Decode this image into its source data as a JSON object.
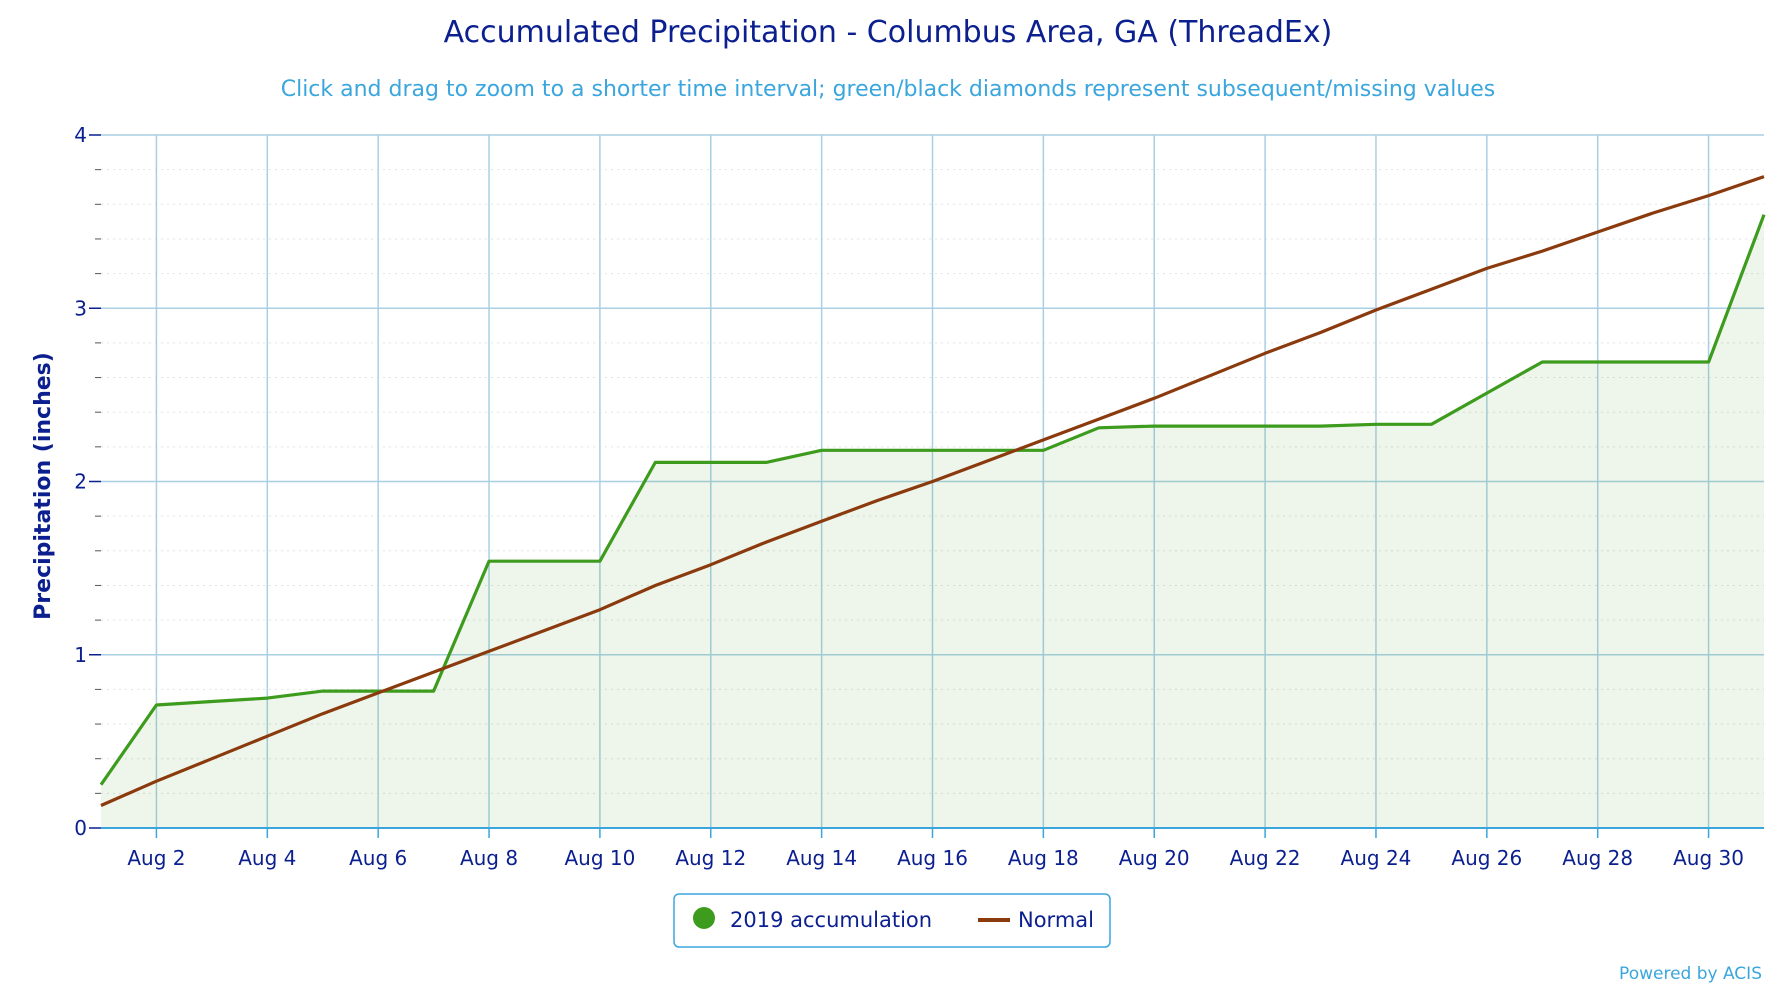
{
  "chart_data": {
    "type": "line",
    "title": "Accumulated Precipitation - Columbus Area, GA (ThreadEx)",
    "subtitle": "Click and drag to zoom to a shorter time interval; green/black diamonds represent subsequent/missing values",
    "ylabel": "Precipitation (inches)",
    "xlabel": "",
    "ylim": [
      0,
      4
    ],
    "y_ticks": [
      "0",
      "1",
      "2",
      "3",
      "4"
    ],
    "x_tick_labels": [
      "Aug 2",
      "Aug 4",
      "Aug 6",
      "Aug 8",
      "Aug 10",
      "Aug 12",
      "Aug 14",
      "Aug 16",
      "Aug 18",
      "Aug 20",
      "Aug 22",
      "Aug 24",
      "Aug 26",
      "Aug 28",
      "Aug 30"
    ],
    "x_tick_days": [
      2,
      4,
      6,
      8,
      10,
      12,
      14,
      16,
      18,
      20,
      22,
      24,
      26,
      28,
      30
    ],
    "x_range_days": [
      1,
      31
    ],
    "grid": true,
    "legend_position": "bottom-center",
    "series": [
      {
        "name": "2019 accumulation",
        "color": "#3d9b1d",
        "area": true,
        "x": [
          1,
          2,
          3,
          4,
          5,
          6,
          7,
          8,
          9,
          10,
          11,
          12,
          13,
          14,
          15,
          16,
          17,
          18,
          19,
          20,
          21,
          22,
          23,
          24,
          25,
          26,
          27,
          28,
          29,
          30,
          31
        ],
        "values": [
          0.25,
          0.71,
          0.73,
          0.75,
          0.79,
          0.79,
          0.79,
          1.54,
          1.54,
          1.54,
          2.11,
          2.11,
          2.11,
          2.18,
          2.18,
          2.18,
          2.18,
          2.18,
          2.31,
          2.32,
          2.32,
          2.32,
          2.32,
          2.33,
          2.33,
          2.51,
          2.69,
          2.69,
          2.69,
          2.69,
          3.54
        ]
      },
      {
        "name": "Normal",
        "color": "#8b3a0e",
        "area": false,
        "x": [
          1,
          2,
          3,
          4,
          5,
          6,
          7,
          8,
          9,
          10,
          11,
          12,
          13,
          14,
          15,
          16,
          17,
          18,
          19,
          20,
          21,
          22,
          23,
          24,
          25,
          26,
          27,
          28,
          29,
          30,
          31
        ],
        "values": [
          0.13,
          0.27,
          0.4,
          0.53,
          0.66,
          0.78,
          0.9,
          1.02,
          1.14,
          1.26,
          1.4,
          1.52,
          1.65,
          1.77,
          1.89,
          2.0,
          2.12,
          2.24,
          2.36,
          2.48,
          2.61,
          2.74,
          2.86,
          2.99,
          3.11,
          3.23,
          3.33,
          3.44,
          3.55,
          3.65,
          3.76
        ]
      }
    ],
    "credit": "Powered by ACIS"
  }
}
